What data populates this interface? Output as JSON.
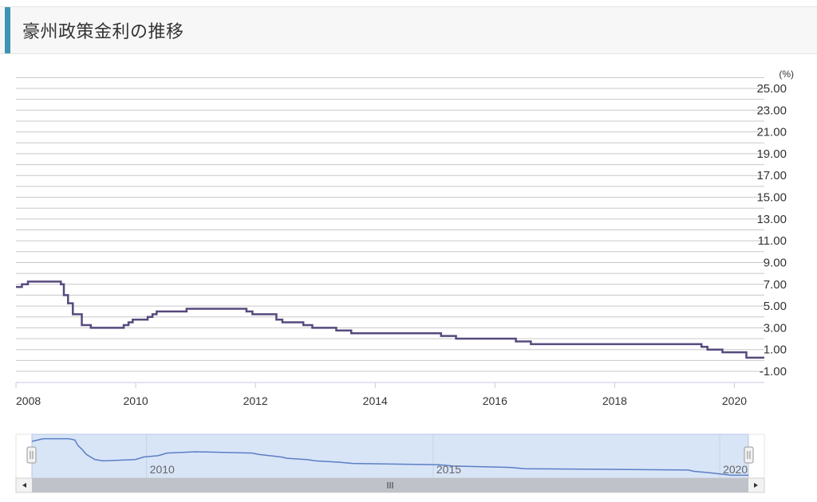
{
  "header": {
    "title": "豪州政策金利の推移"
  },
  "colors": {
    "accent": "#3f93b4",
    "series": "#574a7d",
    "grid": "#c8c8c8",
    "navigator_fill": "#d8e5f7",
    "navigator_line": "#5b7fc4",
    "scrollbar_bg": "#f2f2f2",
    "scrollbar_thumb": "#bfc3c9"
  },
  "chart_data": {
    "type": "line",
    "step": true,
    "ylabel": "(%)",
    "y_ticks": [
      "25.00",
      "23.00",
      "21.00",
      "19.00",
      "17.00",
      "15.00",
      "13.00",
      "11.00",
      "9.00",
      "7.00",
      "5.00",
      "3.00",
      "1.00",
      "-1.00"
    ],
    "ylim": [
      -1,
      25
    ],
    "xlim": [
      2008.0,
      2020.5
    ],
    "x_ticks": [
      "2008",
      "2010",
      "2012",
      "2014",
      "2016",
      "2018",
      "2020"
    ],
    "grid": true,
    "series": [
      {
        "values": [
          [
            2008.0,
            6.75
          ],
          [
            2008.1,
            7.0
          ],
          [
            2008.2,
            7.25
          ],
          [
            2008.65,
            7.25
          ],
          [
            2008.75,
            7.0
          ],
          [
            2008.8,
            6.0
          ],
          [
            2008.87,
            5.25
          ],
          [
            2008.95,
            4.25
          ],
          [
            2009.1,
            3.25
          ],
          [
            2009.25,
            3.0
          ],
          [
            2009.8,
            3.25
          ],
          [
            2009.88,
            3.5
          ],
          [
            2009.95,
            3.75
          ],
          [
            2010.2,
            4.0
          ],
          [
            2010.28,
            4.25
          ],
          [
            2010.35,
            4.5
          ],
          [
            2010.85,
            4.75
          ],
          [
            2011.85,
            4.5
          ],
          [
            2011.95,
            4.25
          ],
          [
            2012.35,
            3.75
          ],
          [
            2012.45,
            3.5
          ],
          [
            2012.8,
            3.25
          ],
          [
            2012.95,
            3.0
          ],
          [
            2013.35,
            2.75
          ],
          [
            2013.6,
            2.5
          ],
          [
            2015.1,
            2.25
          ],
          [
            2015.35,
            2.0
          ],
          [
            2016.35,
            1.75
          ],
          [
            2016.6,
            1.5
          ],
          [
            2019.45,
            1.25
          ],
          [
            2019.55,
            1.0
          ],
          [
            2019.8,
            0.75
          ],
          [
            2020.2,
            0.25
          ],
          [
            2020.5,
            0.25
          ]
        ]
      }
    ]
  },
  "navigator": {
    "x_ticks": [
      "2010",
      "2015",
      "2020"
    ]
  }
}
